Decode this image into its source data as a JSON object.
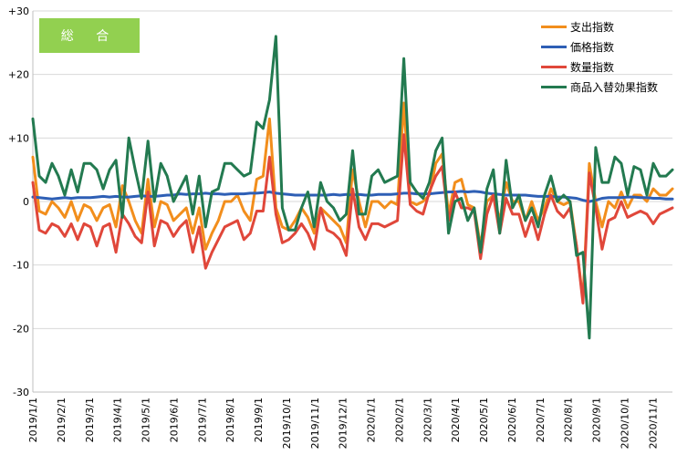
{
  "badge_label": "総 合",
  "colors": {
    "shishutsu": "#f28e1c",
    "kakaku": "#2e5fb5",
    "suryo": "#e0473a",
    "koka": "#237a50",
    "badge": "#92d050"
  },
  "chart_data": {
    "type": "line",
    "title": "",
    "xlabel": "",
    "ylabel": "",
    "ylim": [
      -30,
      30
    ],
    "yticks": [
      -30,
      -20,
      -10,
      0,
      10,
      20,
      30
    ],
    "ytick_labels": [
      "-30",
      "-20",
      "-10",
      "0",
      "+10",
      "+20",
      "+30"
    ],
    "grid": "horizontal",
    "legend_position": "top-right",
    "x_tick_labels": [
      "2019/1/1",
      "2019/2/1",
      "2019/3/1",
      "2019/4/1",
      "2019/5/1",
      "2019/6/1",
      "2019/7/1",
      "2019/8/1",
      "2019/9/1",
      "2019/10/1",
      "2019/11/1",
      "2019/12/1",
      "2020/1/1",
      "2020/2/1",
      "2020/3/1",
      "2020/4/1",
      "2020/5/1",
      "2020/6/1",
      "2020/7/1",
      "2020/8/1",
      "2020/9/1",
      "2020/10/1",
      "2020/11/1"
    ],
    "n_points": 101,
    "series": [
      {
        "name": "支出指数",
        "color": "#f28e1c",
        "values": [
          7,
          -1.5,
          -2,
          0,
          -1,
          -2.5,
          0,
          -3,
          -0.5,
          -1,
          -3,
          -1,
          -0.5,
          -4,
          2.5,
          0,
          -3,
          -5,
          3.5,
          -4,
          0,
          -0.5,
          -3,
          -2,
          -1,
          -5,
          -1,
          -7.5,
          -5,
          -3,
          0,
          0,
          1,
          -1.5,
          -3,
          3.5,
          4,
          13,
          -1,
          -4,
          -4.5,
          -3,
          -1,
          -2.5,
          -5,
          -1,
          -2,
          -3,
          -4,
          -6.5,
          5,
          0,
          -4,
          0,
          0,
          -1,
          0,
          -0.5,
          15.5,
          0,
          -0.5,
          0,
          1,
          6,
          7.5,
          -2,
          3,
          3.5,
          -0.5,
          -1,
          -7,
          0,
          1,
          -3,
          3,
          0,
          0,
          -3,
          0,
          -3,
          -1,
          2,
          0,
          -0.5,
          0,
          -7,
          -15.5,
          6,
          0,
          -4,
          0,
          -1,
          1.5,
          -1,
          1,
          1,
          0,
          2,
          1,
          1,
          2
        ]
      },
      {
        "name": "価格指数",
        "color": "#2e5fb5",
        "values": [
          0.7,
          0.6,
          0.5,
          0.4,
          0.5,
          0.6,
          0.5,
          0.6,
          0.6,
          0.6,
          0.7,
          0.8,
          0.7,
          0.8,
          0.7,
          0.7,
          0.8,
          0.9,
          0.8,
          0.8,
          0.9,
          1,
          1,
          1.2,
          1.1,
          1.2,
          1.2,
          1.3,
          1.2,
          1.2,
          1.1,
          1.2,
          1.2,
          1.2,
          1.3,
          1.3,
          1.4,
          1.5,
          1.3,
          1.2,
          1.1,
          1,
          1,
          1,
          1,
          1,
          1,
          1.1,
          1,
          1.1,
          1,
          1.1,
          1,
          1,
          1.1,
          1.1,
          1.1,
          1.2,
          1.3,
          1.3,
          1.2,
          1.2,
          1.2,
          1.3,
          1.4,
          1.5,
          1.5,
          1.6,
          1.5,
          1.6,
          1.5,
          1.3,
          1.2,
          1.1,
          1,
          1,
          1,
          1,
          0.9,
          0.8,
          0.8,
          0.8,
          0.7,
          0.7,
          0.6,
          0.5,
          0.2,
          0,
          0.2,
          0.5,
          0.6,
          0.6,
          0.6,
          0.7,
          0.7,
          0.6,
          0.6,
          0.5,
          0.5,
          0.4,
          0.4
        ]
      },
      {
        "name": "数量指数",
        "color": "#e0473a",
        "values": [
          3,
          -4.5,
          -5,
          -3.5,
          -4,
          -5.5,
          -3.5,
          -6,
          -3.5,
          -4,
          -7,
          -4,
          -3.5,
          -8,
          -2,
          -3.5,
          -5.5,
          -6.5,
          1.5,
          -7,
          -3,
          -3.5,
          -5.5,
          -4,
          -3,
          -8,
          -4,
          -10.5,
          -8,
          -6,
          -4,
          -3.5,
          -3,
          -6,
          -5,
          -1.5,
          -1.5,
          7,
          -2,
          -6.5,
          -6,
          -5,
          -3.5,
          -5,
          -7.5,
          -1,
          -4.5,
          -5,
          -6,
          -8.5,
          2,
          -4,
          -6,
          -3.5,
          -3.5,
          -4,
          -3.5,
          -3,
          10.5,
          -0.5,
          -1.5,
          -2,
          1.5,
          4,
          5.5,
          -3,
          1.5,
          -1,
          -1,
          -1.5,
          -9,
          -2,
          1,
          -5,
          0.5,
          -2,
          -2,
          -5.5,
          -2.5,
          -6,
          -2,
          1,
          -1.5,
          -2.5,
          -1,
          -7,
          -16,
          4.5,
          -1,
          -7.5,
          -3,
          -2.5,
          0,
          -2.5,
          -2,
          -1.5,
          -2,
          -3.5,
          -2,
          -1.5,
          -1
        ]
      },
      {
        "name": "商品入替効果指数",
        "color": "#237a50",
        "values": [
          13,
          4,
          3,
          6,
          4,
          1,
          5,
          1.5,
          6,
          6,
          5,
          2,
          5,
          6.5,
          -2.5,
          10,
          5,
          0.5,
          9.5,
          0,
          6,
          4,
          0,
          2,
          4,
          -2,
          4,
          -4,
          1.5,
          2,
          6,
          6,
          5,
          4,
          4.5,
          12.5,
          11.5,
          16,
          26,
          -1,
          -4.5,
          -4.5,
          -1,
          1.5,
          -4,
          3,
          0,
          -1,
          -3,
          -2,
          8,
          -2,
          -2,
          4,
          5,
          3,
          3.5,
          4,
          22.5,
          3,
          1.5,
          0.5,
          3,
          8,
          10,
          -5,
          0,
          0.5,
          -3,
          -1,
          -8,
          2,
          5,
          -5,
          6.5,
          -1,
          1,
          -3,
          -1,
          -4,
          1,
          4,
          0,
          1,
          0,
          -8.5,
          -8,
          -21.5,
          8.5,
          3,
          3,
          7,
          6,
          1,
          5.5,
          5,
          1,
          6,
          4,
          4,
          5
        ]
      }
    ]
  }
}
